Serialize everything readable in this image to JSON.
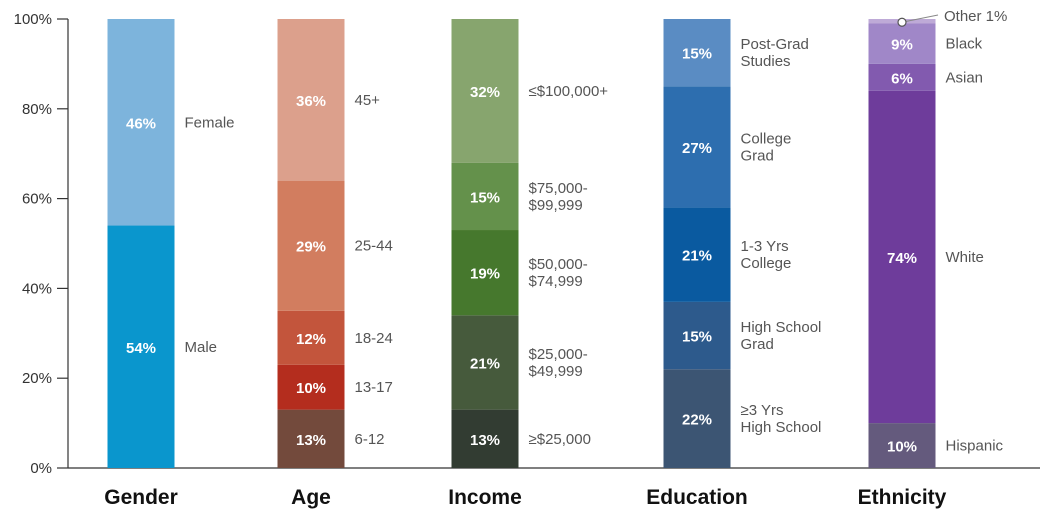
{
  "chart_data": {
    "type": "bar",
    "stacked": true,
    "ylim": [
      0,
      100
    ],
    "y_ticks": [
      "0%",
      "20%",
      "40%",
      "60%",
      "80%",
      "100%"
    ],
    "y_tick_values": [
      0,
      20,
      40,
      60,
      80,
      100
    ],
    "categories": [
      "Gender",
      "Age",
      "Income",
      "Education",
      "Ethnicity"
    ],
    "bars": [
      {
        "category": "Gender",
        "segments": [
          {
            "label": "Male",
            "value": 54,
            "value_label": "54%",
            "color": "#0a96cd"
          },
          {
            "label": "Female",
            "value": 46,
            "value_label": "46%",
            "color": "#7db4dc"
          }
        ]
      },
      {
        "category": "Age",
        "segments": [
          {
            "label": "6-12",
            "value": 13,
            "value_label": "13%",
            "color": "#734a3c"
          },
          {
            "label": "13-17",
            "value": 10,
            "value_label": "10%",
            "color": "#b42d1e"
          },
          {
            "label": "18-24",
            "value": 12,
            "value_label": "12%",
            "color": "#c3553c"
          },
          {
            "label": "25-44",
            "value": 29,
            "value_label": "29%",
            "color": "#d27d5f"
          },
          {
            "label": "45+",
            "value": 36,
            "value_label": "36%",
            "color": "#dca08c"
          }
        ]
      },
      {
        "category": "Income",
        "segments": [
          {
            "label": "≥$25,000",
            "value": 13,
            "value_label": "13%",
            "color": "#323c32"
          },
          {
            "label": "$25,000-\n$49,999",
            "value": 21,
            "value_label": "21%",
            "color": "#465a3c"
          },
          {
            "label": "$50,000-\n$74,999",
            "value": 19,
            "value_label": "19%",
            "color": "#46782d"
          },
          {
            "label": "$75,000-\n$99,999",
            "value": 15,
            "value_label": "15%",
            "color": "#64914b"
          },
          {
            "label": "≤$100,000+",
            "value": 32,
            "value_label": "32%",
            "color": "#87a56e"
          }
        ]
      },
      {
        "category": "Education",
        "segments": [
          {
            "label": "≥3 Yrs\nHigh School",
            "value": 22,
            "value_label": "22%",
            "color": "#3c5573"
          },
          {
            "label": "High School\nGrad",
            "value": 15,
            "value_label": "15%",
            "color": "#2d5a8c"
          },
          {
            "label": "1-3 Yrs\nCollege",
            "value": 21,
            "value_label": "21%",
            "color": "#0a5aa0"
          },
          {
            "label": "College\nGrad",
            "value": 27,
            "value_label": "27%",
            "color": "#2d6eaf"
          },
          {
            "label": "Post-Grad\nStudies",
            "value": 15,
            "value_label": "15%",
            "color": "#5a8cc3"
          }
        ]
      },
      {
        "category": "Ethnicity",
        "segments": [
          {
            "label": "Hispanic",
            "value": 10,
            "value_label": "10%",
            "color": "#645a7d"
          },
          {
            "label": "White",
            "value": 74,
            "value_label": "74%",
            "color": "#6e3c9b"
          },
          {
            "label": "Asian",
            "value": 6,
            "value_label": "6%",
            "color": "#825aaf"
          },
          {
            "label": "Black",
            "value": 9,
            "value_label": "9%",
            "color": "#a087c8"
          },
          {
            "label": "Other 1%",
            "value": 1,
            "value_label": "",
            "color": "#beaad7",
            "callout": true
          }
        ]
      }
    ]
  }
}
